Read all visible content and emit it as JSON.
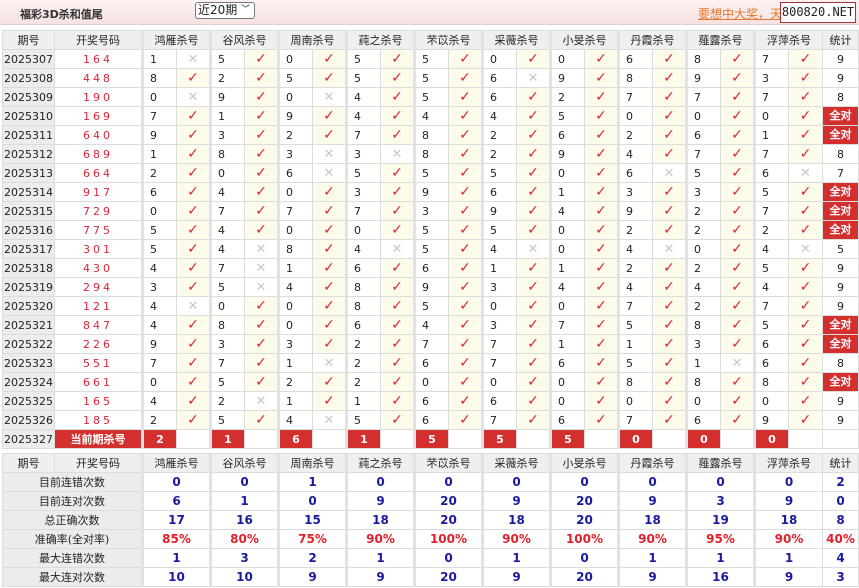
{
  "header": {
    "title": "福彩3D杀和值尾",
    "range_select": "近20期",
    "promo_link": "要想中大奖，天",
    "brand": "800820.NET"
  },
  "columns": {
    "period": "期号",
    "draw": "开奖号码",
    "stat": "统计",
    "experts": [
      "鸿雁杀号",
      "谷风杀号",
      "周南杀号",
      "莼之杀号",
      "芣苡杀号",
      "采薇杀号",
      "小旻杀号",
      "丹霞杀号",
      "薤露杀号",
      "浮萍杀号"
    ]
  },
  "marks": {
    "ok": "✓",
    "bad": "✕"
  },
  "colors": {
    "accent_red": "#d32f2f",
    "stat_blue": "#1a1a9c"
  },
  "rows": [
    {
      "period": "2025307",
      "draw": "164",
      "picks": [
        [
          1,
          0
        ],
        [
          5,
          1
        ],
        [
          0,
          1
        ],
        [
          5,
          1
        ],
        [
          5,
          1
        ],
        [
          0,
          1
        ],
        [
          0,
          1
        ],
        [
          6,
          1
        ],
        [
          8,
          1
        ],
        [
          7,
          1
        ]
      ],
      "stat": "9"
    },
    {
      "period": "2025308",
      "draw": "448",
      "picks": [
        [
          8,
          1
        ],
        [
          2,
          1
        ],
        [
          5,
          1
        ],
        [
          5,
          1
        ],
        [
          5,
          1
        ],
        [
          6,
          0
        ],
        [
          9,
          1
        ],
        [
          8,
          1
        ],
        [
          9,
          1
        ],
        [
          3,
          1
        ]
      ],
      "stat": "9"
    },
    {
      "period": "2025309",
      "draw": "190",
      "picks": [
        [
          0,
          0
        ],
        [
          9,
          1
        ],
        [
          0,
          0
        ],
        [
          4,
          1
        ],
        [
          5,
          1
        ],
        [
          6,
          1
        ],
        [
          2,
          1
        ],
        [
          7,
          1
        ],
        [
          7,
          1
        ],
        [
          7,
          1
        ]
      ],
      "stat": "8"
    },
    {
      "period": "2025310",
      "draw": "169",
      "picks": [
        [
          7,
          1
        ],
        [
          1,
          1
        ],
        [
          9,
          1
        ],
        [
          4,
          1
        ],
        [
          4,
          1
        ],
        [
          4,
          1
        ],
        [
          5,
          1
        ],
        [
          0,
          1
        ],
        [
          0,
          1
        ],
        [
          0,
          1
        ]
      ],
      "stat": "全对"
    },
    {
      "period": "2025311",
      "draw": "640",
      "picks": [
        [
          9,
          1
        ],
        [
          3,
          1
        ],
        [
          2,
          1
        ],
        [
          7,
          1
        ],
        [
          8,
          1
        ],
        [
          2,
          1
        ],
        [
          6,
          1
        ],
        [
          2,
          1
        ],
        [
          6,
          1
        ],
        [
          1,
          1
        ]
      ],
      "stat": "全对"
    },
    {
      "period": "2025312",
      "draw": "689",
      "picks": [
        [
          1,
          1
        ],
        [
          8,
          1
        ],
        [
          3,
          0
        ],
        [
          3,
          0
        ],
        [
          8,
          1
        ],
        [
          2,
          1
        ],
        [
          9,
          1
        ],
        [
          4,
          1
        ],
        [
          7,
          1
        ],
        [
          7,
          1
        ]
      ],
      "stat": "8"
    },
    {
      "period": "2025313",
      "draw": "664",
      "picks": [
        [
          2,
          1
        ],
        [
          0,
          1
        ],
        [
          6,
          0
        ],
        [
          5,
          1
        ],
        [
          5,
          1
        ],
        [
          5,
          1
        ],
        [
          0,
          1
        ],
        [
          6,
          0
        ],
        [
          5,
          1
        ],
        [
          6,
          0
        ]
      ],
      "stat": "7"
    },
    {
      "period": "2025314",
      "draw": "917",
      "picks": [
        [
          6,
          1
        ],
        [
          4,
          1
        ],
        [
          0,
          1
        ],
        [
          3,
          1
        ],
        [
          9,
          1
        ],
        [
          6,
          1
        ],
        [
          1,
          1
        ],
        [
          3,
          1
        ],
        [
          3,
          1
        ],
        [
          5,
          1
        ]
      ],
      "stat": "全对"
    },
    {
      "period": "2025315",
      "draw": "729",
      "picks": [
        [
          0,
          1
        ],
        [
          7,
          1
        ],
        [
          7,
          1
        ],
        [
          7,
          1
        ],
        [
          3,
          1
        ],
        [
          9,
          1
        ],
        [
          4,
          1
        ],
        [
          9,
          1
        ],
        [
          2,
          1
        ],
        [
          7,
          1
        ]
      ],
      "stat": "全对"
    },
    {
      "period": "2025316",
      "draw": "775",
      "picks": [
        [
          5,
          1
        ],
        [
          4,
          1
        ],
        [
          0,
          1
        ],
        [
          0,
          1
        ],
        [
          5,
          1
        ],
        [
          5,
          1
        ],
        [
          0,
          1
        ],
        [
          2,
          1
        ],
        [
          2,
          1
        ],
        [
          2,
          1
        ]
      ],
      "stat": "全对"
    },
    {
      "period": "2025317",
      "draw": "301",
      "picks": [
        [
          5,
          1
        ],
        [
          4,
          0
        ],
        [
          8,
          1
        ],
        [
          4,
          0
        ],
        [
          5,
          1
        ],
        [
          4,
          0
        ],
        [
          0,
          1
        ],
        [
          4,
          0
        ],
        [
          0,
          1
        ],
        [
          4,
          0
        ]
      ],
      "stat": "5"
    },
    {
      "period": "2025318",
      "draw": "430",
      "picks": [
        [
          4,
          1
        ],
        [
          7,
          0
        ],
        [
          1,
          1
        ],
        [
          6,
          1
        ],
        [
          6,
          1
        ],
        [
          1,
          1
        ],
        [
          1,
          1
        ],
        [
          2,
          1
        ],
        [
          2,
          1
        ],
        [
          5,
          1
        ]
      ],
      "stat": "9"
    },
    {
      "period": "2025319",
      "draw": "294",
      "picks": [
        [
          3,
          1
        ],
        [
          5,
          0
        ],
        [
          4,
          1
        ],
        [
          8,
          1
        ],
        [
          9,
          1
        ],
        [
          3,
          1
        ],
        [
          4,
          1
        ],
        [
          4,
          1
        ],
        [
          4,
          1
        ],
        [
          4,
          1
        ]
      ],
      "stat": "9"
    },
    {
      "period": "2025320",
      "draw": "121",
      "picks": [
        [
          4,
          0
        ],
        [
          0,
          1
        ],
        [
          0,
          1
        ],
        [
          8,
          1
        ],
        [
          5,
          1
        ],
        [
          0,
          1
        ],
        [
          0,
          1
        ],
        [
          7,
          1
        ],
        [
          2,
          1
        ],
        [
          7,
          1
        ]
      ],
      "stat": "9"
    },
    {
      "period": "2025321",
      "draw": "847",
      "picks": [
        [
          4,
          1
        ],
        [
          8,
          1
        ],
        [
          0,
          1
        ],
        [
          6,
          1
        ],
        [
          4,
          1
        ],
        [
          3,
          1
        ],
        [
          7,
          1
        ],
        [
          5,
          1
        ],
        [
          8,
          1
        ],
        [
          5,
          1
        ]
      ],
      "stat": "全对"
    },
    {
      "period": "2025322",
      "draw": "226",
      "picks": [
        [
          9,
          1
        ],
        [
          3,
          1
        ],
        [
          3,
          1
        ],
        [
          2,
          1
        ],
        [
          7,
          1
        ],
        [
          7,
          1
        ],
        [
          1,
          1
        ],
        [
          1,
          1
        ],
        [
          3,
          1
        ],
        [
          6,
          1
        ]
      ],
      "stat": "全对"
    },
    {
      "period": "2025323",
      "draw": "551",
      "picks": [
        [
          7,
          1
        ],
        [
          7,
          1
        ],
        [
          1,
          0
        ],
        [
          2,
          1
        ],
        [
          6,
          1
        ],
        [
          7,
          1
        ],
        [
          6,
          1
        ],
        [
          5,
          1
        ],
        [
          1,
          0
        ],
        [
          6,
          1
        ]
      ],
      "stat": "8"
    },
    {
      "period": "2025324",
      "draw": "661",
      "picks": [
        [
          0,
          1
        ],
        [
          5,
          1
        ],
        [
          2,
          1
        ],
        [
          2,
          1
        ],
        [
          0,
          1
        ],
        [
          0,
          1
        ],
        [
          0,
          1
        ],
        [
          8,
          1
        ],
        [
          8,
          1
        ],
        [
          8,
          1
        ]
      ],
      "stat": "全对"
    },
    {
      "period": "2025325",
      "draw": "165",
      "picks": [
        [
          4,
          1
        ],
        [
          2,
          0
        ],
        [
          1,
          1
        ],
        [
          1,
          1
        ],
        [
          6,
          1
        ],
        [
          6,
          1
        ],
        [
          0,
          1
        ],
        [
          0,
          1
        ],
        [
          0,
          1
        ],
        [
          0,
          1
        ]
      ],
      "stat": "9"
    },
    {
      "period": "2025326",
      "draw": "185",
      "picks": [
        [
          2,
          1
        ],
        [
          5,
          1
        ],
        [
          4,
          0
        ],
        [
          5,
          1
        ],
        [
          6,
          1
        ],
        [
          7,
          1
        ],
        [
          6,
          1
        ],
        [
          7,
          1
        ],
        [
          6,
          1
        ],
        [
          9,
          1
        ]
      ],
      "stat": "9"
    }
  ],
  "current": {
    "period": "2025327",
    "label": "当前期杀号",
    "picks": [
      "2",
      "1",
      "6",
      "1",
      "5",
      "5",
      "5",
      "0",
      "0",
      "0"
    ]
  },
  "stats": [
    {
      "label": "目前连错次数",
      "values": [
        "0",
        "0",
        "1",
        "0",
        "0",
        "0",
        "0",
        "0",
        "0",
        "0",
        "2"
      ]
    },
    {
      "label": "目前连对次数",
      "values": [
        "6",
        "1",
        "0",
        "9",
        "20",
        "9",
        "20",
        "9",
        "3",
        "9",
        "0"
      ]
    },
    {
      "label": "总正确次数",
      "values": [
        "17",
        "16",
        "15",
        "18",
        "20",
        "18",
        "20",
        "18",
        "19",
        "18",
        "8"
      ]
    },
    {
      "label": "准确率(全对率)",
      "values": [
        "85%",
        "80%",
        "75%",
        "90%",
        "100%",
        "90%",
        "100%",
        "90%",
        "95%",
        "90%",
        "40%"
      ],
      "percent": true
    },
    {
      "label": "最大连错次数",
      "values": [
        "1",
        "3",
        "2",
        "1",
        "0",
        "1",
        "0",
        "1",
        "1",
        "1",
        "4"
      ]
    },
    {
      "label": "最大连对次数",
      "values": [
        "10",
        "10",
        "9",
        "9",
        "20",
        "9",
        "20",
        "9",
        "16",
        "9",
        "3"
      ]
    }
  ]
}
